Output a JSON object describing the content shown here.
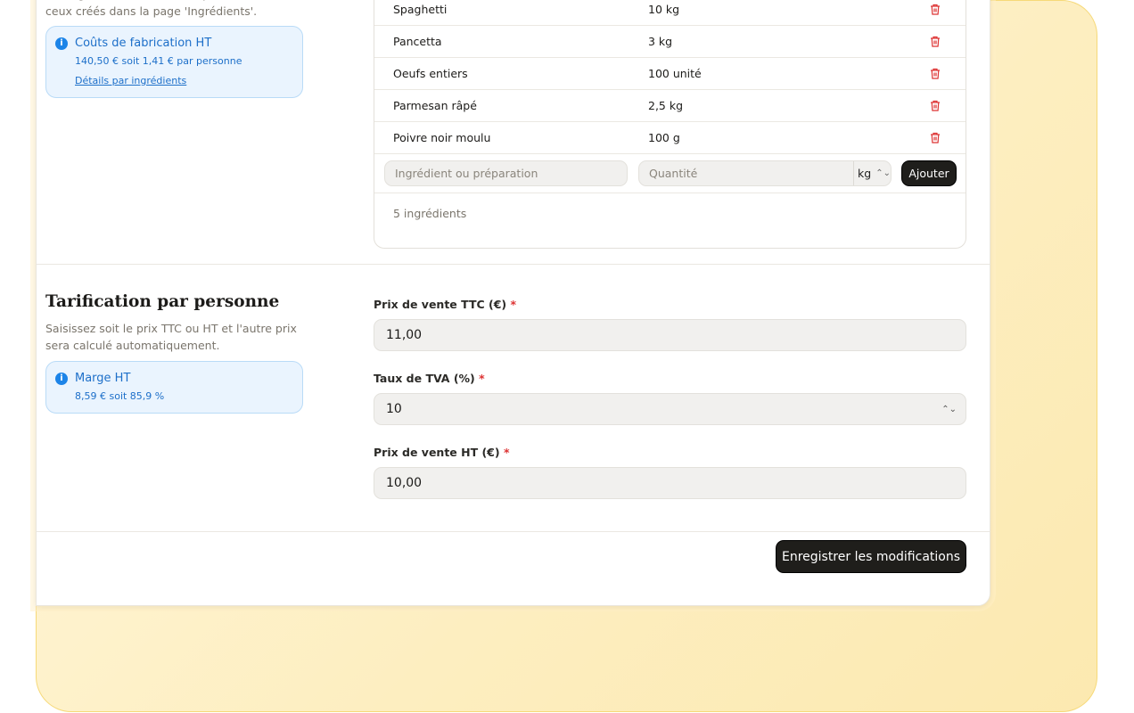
{
  "ingredients": {
    "help": "Les ingrédients et unités disponibles sont ceux créés dans la page 'Ingrédients'.",
    "cost_title": "Coûts de fabrication HT",
    "cost_value": "140,50 € soit 1,41 € par personne",
    "cost_link": "Détails par ingrédients",
    "rows": [
      {
        "name": "Spaghetti",
        "qty": "10 kg"
      },
      {
        "name": "Pancetta",
        "qty": "3 kg"
      },
      {
        "name": "Oeufs entiers",
        "qty": "100 unité"
      },
      {
        "name": "Parmesan râpé",
        "qty": "2,5 kg"
      },
      {
        "name": "Poivre noir moulu",
        "qty": "100 g"
      }
    ],
    "ingredient_placeholder": "Ingrédient ou préparation",
    "quantity_placeholder": "Quantité",
    "unit": "kg",
    "add_label": "Ajouter",
    "count": "5 ingrédients"
  },
  "pricing": {
    "title": "Tarification par personne",
    "help": "Saisissez soit le prix TTC ou HT et l'autre prix sera calculé automatiquement.",
    "margin_title": "Marge HT",
    "margin_value": "8,59 € soit 85,9 %",
    "ttc_label": "Prix de vente TTC (€)",
    "ttc_value": "11,00",
    "tva_label": "Taux de TVA (%)",
    "tva_value": "10",
    "ht_label": "Prix de vente HT (€)",
    "ht_value": "10,00",
    "required": "*"
  },
  "save_label": "Enregistrer les modifications",
  "colors": {
    "accent": "#1d6fc9",
    "danger": "#d33",
    "button": "#1f1e1b",
    "frame": "#f6d978"
  }
}
